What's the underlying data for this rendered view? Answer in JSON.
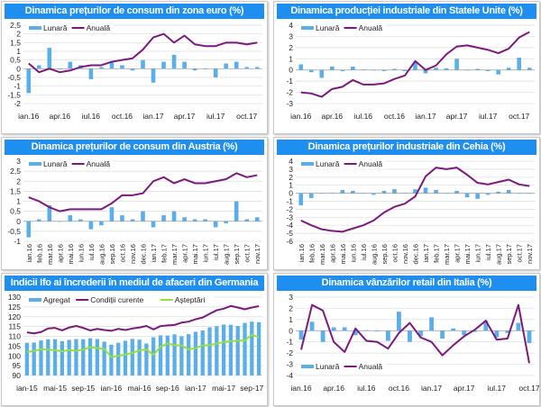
{
  "colors": {
    "bar": "#5aaeea",
    "line": "#7b1a7d",
    "green": "#92e23a",
    "title_bg": "#1e8ff0"
  },
  "chart_data": [
    {
      "title": "Dinamica prețurilor de consum din zona euro (%)",
      "type": "bar+line",
      "ylim": [
        -2,
        2.5
      ],
      "ystep": 0.5,
      "legend": "top-left",
      "rotate_labels": false,
      "categories": [
        "ian.16",
        "feb.16",
        "mar.16",
        "apr.16",
        "mai.16",
        "iun.16",
        "iul.16",
        "aug.16",
        "sep.16",
        "oct.16",
        "nov.16",
        "dec.16",
        "ian.17",
        "feb.17",
        "mar.17",
        "apr.17",
        "mai.17",
        "iun.17",
        "iul.17",
        "aug.17",
        "sep.17",
        "oct.17",
        "nov.17"
      ],
      "tick_labels": [
        "ian.16",
        "apr.16",
        "iul.16",
        "oct.16",
        "ian.17",
        "apr.17",
        "iul.17",
        "oct.17"
      ],
      "series": [
        {
          "name": "Lunară",
          "kind": "bar",
          "color": "#5aaeea",
          "values": [
            -1.4,
            0.2,
            1.2,
            0,
            0.4,
            0.2,
            -0.6,
            0.1,
            0.4,
            0.2,
            -0.1,
            0.5,
            -0.8,
            0.4,
            0.8,
            0.4,
            -0.1,
            0,
            -0.5,
            0.3,
            0.4,
            0.1,
            0.1
          ]
        },
        {
          "name": "Anuală",
          "kind": "line",
          "color": "#7b1a7d",
          "values": [
            0.3,
            -0.2,
            0,
            -0.2,
            -0.1,
            0.1,
            0.2,
            0.2,
            0.4,
            0.5,
            0.6,
            1.1,
            1.8,
            2.0,
            1.5,
            1.9,
            1.4,
            1.3,
            1.3,
            1.5,
            1.5,
            1.4,
            1.5
          ]
        }
      ]
    },
    {
      "title": "Dinamica producției industriale din Statele Unite (%)",
      "type": "bar+line",
      "ylim": [
        -3,
        4
      ],
      "ystep": 1,
      "legend": "top-left",
      "rotate_labels": false,
      "categories": [
        "ian.16",
        "feb.16",
        "mar.16",
        "apr.16",
        "mai.16",
        "iun.16",
        "iul.16",
        "aug.16",
        "sep.16",
        "oct.16",
        "nov.16",
        "dec.16",
        "ian.17",
        "feb.17",
        "mar.17",
        "apr.17",
        "mai.17",
        "iun.17",
        "iul.17",
        "aug.17",
        "sep.17",
        "oct.17",
        "nov.17"
      ],
      "tick_labels": [
        "ian.16",
        "apr.16",
        "iul.16",
        "oct.16",
        "ian.17",
        "apr.17",
        "iul.17",
        "oct.17"
      ],
      "series": [
        {
          "name": "Lunară",
          "kind": "bar",
          "color": "#5aaeea",
          "values": [
            0.5,
            -0.2,
            -0.7,
            0.3,
            -0.1,
            0.3,
            0.05,
            -0.05,
            -0.1,
            0.1,
            -0.1,
            0.7,
            -0.3,
            0.2,
            0.15,
            1.0,
            0,
            0.1,
            -0.1,
            -0.4,
            0.2,
            1.1,
            0.2
          ]
        },
        {
          "name": "Anuală",
          "kind": "line",
          "color": "#7b1a7d",
          "values": [
            -2.0,
            -2.1,
            -2.4,
            -1.7,
            -1.5,
            -0.9,
            -1.3,
            -1.3,
            -1.2,
            -0.8,
            -0.5,
            0.8,
            0,
            0.4,
            1.4,
            2.1,
            2.2,
            2.0,
            1.8,
            1.5,
            1.9,
            2.9,
            3.4
          ]
        }
      ]
    },
    {
      "title": "Dinamica prețurilor de consum din Austria (%)",
      "type": "bar+line",
      "ylim": [
        -1,
        3
      ],
      "ystep": 0.5,
      "legend": "top-left",
      "rotate_labels": true,
      "categories": [
        "ian.16",
        "feb.16",
        "mar.16",
        "apr.16",
        "mai.16",
        "iun.16",
        "iul.16",
        "aug.16",
        "sep.16",
        "oct.16",
        "nov.16",
        "dec.16",
        "ian.17",
        "feb.17",
        "mar.17",
        "apr.17",
        "mai.17",
        "iun.17",
        "iul.17",
        "aug.17",
        "sep.17",
        "oct.17",
        "nov.17"
      ],
      "tick_labels": [
        "ian.16",
        "feb.16",
        "mar.16",
        "apr.16",
        "mai.16",
        "iun.16",
        "iul.16",
        "aug.16",
        "sep.16",
        "oct.16",
        "nov.16",
        "dec.16",
        "ian.17",
        "feb.17",
        "mar.17",
        "apr.17",
        "mai.17",
        "iun.17",
        "iul.17",
        "aug.17",
        "sep.17",
        "oct.17",
        "nov.17"
      ],
      "series": [
        {
          "name": "Lunară",
          "kind": "bar",
          "color": "#5aaeea",
          "values": [
            -0.8,
            0.1,
            0.8,
            0,
            0.3,
            0.1,
            -0.4,
            -0.2,
            0.7,
            0.3,
            0.1,
            0.5,
            -0.3,
            0.3,
            0.5,
            0.2,
            0.1,
            0.1,
            -0.3,
            -0.1,
            1.0,
            0.1,
            0.2
          ]
        },
        {
          "name": "Anuală",
          "kind": "line",
          "color": "#7b1a7d",
          "values": [
            1.2,
            1.0,
            0.7,
            0.5,
            0.6,
            0.6,
            0.6,
            0.6,
            0.9,
            1.3,
            1.3,
            1.4,
            2.0,
            2.2,
            1.9,
            2.1,
            1.9,
            1.9,
            2.0,
            2.1,
            2.4,
            2.2,
            2.3
          ]
        }
      ]
    },
    {
      "title": "Dinamica prețurilor industriale din Cehia (%)",
      "type": "bar+line",
      "ylim": [
        -6,
        4
      ],
      "ystep": 1,
      "legend": "top-left",
      "rotate_labels": true,
      "categories": [
        "ian.16",
        "feb.16",
        "mar.16",
        "apr.16",
        "mai.16",
        "iun.16",
        "iul.16",
        "aug.16",
        "sep.16",
        "oct.16",
        "nov.16",
        "dec.16",
        "ian.17",
        "feb.17",
        "mar.17",
        "apr.17",
        "mai.17",
        "iun.17",
        "iul.17",
        "aug.17",
        "sep.17",
        "oct.17",
        "nov.17"
      ],
      "tick_labels": [
        "ian.16",
        "feb.16",
        "mar.16",
        "apr.16",
        "mai.16",
        "iun.16",
        "iul.16",
        "aug.16",
        "sep.16",
        "oct.16",
        "nov.16",
        "dec.16",
        "ian.17",
        "feb.17",
        "mar.17",
        "apr.17",
        "mai.17",
        "iun.17",
        "iul.17",
        "aug.17",
        "sep.17",
        "oct.17",
        "nov.17"
      ],
      "series": [
        {
          "name": "Lunară",
          "kind": "bar",
          "color": "#5aaeea",
          "values": [
            -1.5,
            -0.6,
            0,
            0.05,
            0.4,
            0.3,
            0,
            -0.2,
            0.3,
            0.5,
            0.05,
            0.5,
            0.7,
            0.4,
            -0.05,
            0.3,
            -0.5,
            -0.7,
            -0.2,
            0.2,
            0.4,
            0,
            -0.05
          ]
        },
        {
          "name": "Anuală",
          "kind": "line",
          "color": "#7b1a7d",
          "values": [
            -3.4,
            -4.0,
            -4.5,
            -4.7,
            -4.8,
            -4.4,
            -4.0,
            -3.4,
            -2.4,
            -1.7,
            -1.3,
            -0.4,
            2.1,
            3.2,
            3.0,
            3.2,
            2.3,
            1.3,
            1.1,
            1.4,
            1.7,
            1.1,
            0.9
          ]
        }
      ]
    },
    {
      "title": "Indicii Ifo ai încrederii în mediul de afaceri din Germania",
      "type": "bar+line",
      "ylim": [
        90,
        130
      ],
      "ystep": 5,
      "legend": "top-left",
      "rotate_labels": false,
      "categories": [
        "ian-15",
        "feb-15",
        "mar-15",
        "apr-15",
        "mai-15",
        "iun-15",
        "iul-15",
        "aug-15",
        "sep-15",
        "oct-15",
        "nov-15",
        "dec-15",
        "ian-16",
        "feb-16",
        "mar-16",
        "apr-16",
        "mai-16",
        "iun-16",
        "iul-16",
        "aug-16",
        "sep-16",
        "oct-16",
        "nov-16",
        "dec-16",
        "ian-17",
        "feb-17",
        "mar-17",
        "apr-17",
        "mai-17",
        "iun-17",
        "iul-17",
        "aug-17",
        "sep-17",
        "oct-17"
      ],
      "tick_labels": [
        "ian-15",
        "mai-15",
        "sep-15",
        "ian-16",
        "mai-16",
        "sep-16",
        "ian-17",
        "mai-17",
        "sep-17"
      ],
      "series": [
        {
          "name": "Agregat",
          "kind": "bar",
          "color": "#5aaeea",
          "values": [
            106.7,
            106.8,
            107.9,
            108.4,
            108.5,
            107.5,
            108.2,
            108.6,
            108.5,
            109.0,
            108.6,
            107.3,
            105.7,
            106.7,
            107.7,
            108.7,
            108.3,
            106.3,
            109.5,
            110.5,
            110.4,
            111.0,
            110.0,
            111.1,
            112.3,
            113.0,
            114.6,
            115.2,
            116.0,
            115.9,
            115.3,
            116.8,
            117.5,
            117.2
          ]
        },
        {
          "name": "Condiții curente",
          "kind": "line",
          "color": "#7b1a7d",
          "values": [
            112,
            111.5,
            112.2,
            114,
            114.3,
            113,
            114.5,
            115.3,
            114.3,
            113,
            113.8,
            113.2,
            112.8,
            113.8,
            113.2,
            114,
            114.5,
            115.3,
            113.5,
            115.2,
            115.6,
            115.8,
            117,
            117.5,
            118.7,
            119.6,
            121.5,
            123.3,
            124.1,
            125.5,
            124.7,
            123.8,
            124.7,
            125.4
          ]
        },
        {
          "name": "Așteptări",
          "kind": "line",
          "color": "#92e23a",
          "values": [
            102,
            102.5,
            103.5,
            103.2,
            103,
            102.3,
            103,
            102.6,
            103.2,
            104.5,
            104,
            103.5,
            99.5,
            100,
            100.7,
            101.6,
            102.8,
            103.3,
            100.5,
            104.7,
            106.3,
            105.5,
            105.3,
            103.3,
            104,
            105.3,
            105.5,
            106.3,
            107,
            107.5,
            107.8,
            107.8,
            110.8,
            109.5
          ]
        }
      ]
    },
    {
      "title": "Dinamica vânzărilor retail din Italia (%)",
      "type": "bar+line",
      "ylim": [
        -4,
        3
      ],
      "ystep": 1,
      "legend": "bottom-left",
      "rotate_labels": false,
      "categories": [
        "ian.16",
        "feb.16",
        "mar.16",
        "apr.16",
        "mai.16",
        "iun.16",
        "iul.16",
        "aug.16",
        "sep.16",
        "oct.16",
        "nov.16",
        "dec.16",
        "ian.17",
        "feb.17",
        "mar.17",
        "apr.17",
        "mai.17",
        "iun.17",
        "iul.17",
        "aug.17",
        "sep.17",
        "oct.17"
      ],
      "tick_labels": [
        "ian.16",
        "apr.16",
        "iul.16",
        "oct.16",
        "ian.17",
        "apr.17",
        "iul.17",
        "oct.17"
      ],
      "series": [
        {
          "name": "Lunară",
          "kind": "bar",
          "color": "#5aaeea",
          "values": [
            -0.8,
            0.8,
            -1.0,
            0.3,
            0.3,
            -0.4,
            0.05,
            -0.05,
            -0.9,
            1.7,
            -1.0,
            -0.5,
            1.2,
            -0.7,
            0.2,
            -0.4,
            -0.1,
            0.9,
            -0.6,
            -0.2,
            0.7,
            -1.1
          ]
        },
        {
          "name": "Anuală",
          "kind": "line",
          "color": "#7b1a7d",
          "values": [
            -1.7,
            2.3,
            1.8,
            -1.0,
            -1.9,
            0.2,
            -0.9,
            -1.0,
            -1.6,
            -0.2,
            0.7,
            -0.6,
            -1.0,
            -2.2,
            -1.3,
            -0.5,
            0.1,
            0.9,
            -0.8,
            -0.7,
            2.3,
            -2.9
          ]
        }
      ]
    }
  ]
}
